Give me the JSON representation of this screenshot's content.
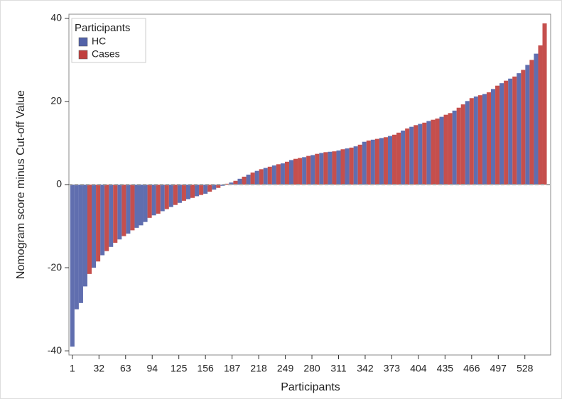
{
  "chart_data": {
    "type": "bar",
    "xlabel": "Participants",
    "ylabel": "Nomogram score minus Cut-off Value",
    "legend_title": "Participants",
    "legend": "upper left",
    "xlim": [
      -3,
      558
    ],
    "ylim": [
      -41,
      41
    ],
    "xticks": [
      1,
      32,
      63,
      94,
      125,
      156,
      187,
      218,
      249,
      280,
      311,
      342,
      373,
      404,
      435,
      466,
      497,
      528
    ],
    "yticks": [
      -40,
      -20,
      0,
      20,
      40
    ],
    "reference_line": 0,
    "series": [
      {
        "name": "HC",
        "color": "#5262a8",
        "x": [
          1,
          6,
          11,
          16,
          26,
          36,
          46,
          56,
          66,
          76,
          81,
          86,
          96,
          106,
          116,
          126,
          136,
          146,
          156,
          166,
          176,
          186,
          196,
          206,
          216,
          226,
          236,
          246,
          256,
          271,
          281,
          291,
          301,
          311,
          321,
          331,
          341,
          351,
          361,
          371,
          386,
          396,
          406,
          416,
          431,
          446,
          461,
          471,
          481,
          491,
          501,
          511,
          521,
          531,
          541
        ],
        "values": [
          -39,
          -30,
          -28.5,
          -24.5,
          -20,
          -17,
          -15,
          -13.2,
          -11.8,
          -10.4,
          -9.8,
          -9,
          -7.4,
          -6.4,
          -5.4,
          -4.4,
          -3.5,
          -2.8,
          -2.2,
          -1.2,
          -0.3,
          0.5,
          1.4,
          2.4,
          3.3,
          4,
          4.6,
          5.1,
          5.9,
          6.6,
          7.1,
          7.6,
          7.9,
          8.2,
          8.7,
          9.2,
          10.3,
          10.8,
          11.2,
          11.7,
          13,
          13.9,
          14.6,
          15.3,
          16.3,
          17.8,
          20.1,
          21.2,
          21.8,
          23,
          24.4,
          25.5,
          26.8,
          28.8,
          31.5
        ]
      },
      {
        "name": "Cases",
        "color": "#c0403e",
        "x": [
          21,
          31,
          41,
          51,
          61,
          71,
          91,
          101,
          111,
          121,
          131,
          141,
          151,
          161,
          171,
          181,
          191,
          201,
          211,
          221,
          231,
          241,
          251,
          261,
          266,
          276,
          286,
          296,
          306,
          316,
          326,
          336,
          346,
          356,
          366,
          376,
          381,
          391,
          401,
          411,
          421,
          426,
          436,
          441,
          451,
          456,
          466,
          476,
          486,
          496,
          506,
          516,
          526,
          536,
          546,
          551
        ],
        "values": [
          -21.5,
          -18.5,
          -16,
          -14,
          -12.4,
          -11,
          -8,
          -7,
          -5.9,
          -4.9,
          -3.9,
          -3.2,
          -2.5,
          -1.7,
          -0.8,
          0.2,
          0.9,
          1.9,
          2.9,
          3.7,
          4.3,
          4.9,
          5.5,
          6.2,
          6.4,
          6.9,
          7.4,
          7.8,
          8,
          8.5,
          8.9,
          9.6,
          10.6,
          11,
          11.4,
          12,
          12.5,
          13.5,
          14.3,
          14.9,
          15.6,
          15.9,
          16.8,
          17.2,
          18.5,
          19.3,
          20.8,
          21.5,
          22.2,
          23.8,
          25,
          26,
          27.6,
          30,
          33.5,
          38.8
        ]
      }
    ]
  }
}
